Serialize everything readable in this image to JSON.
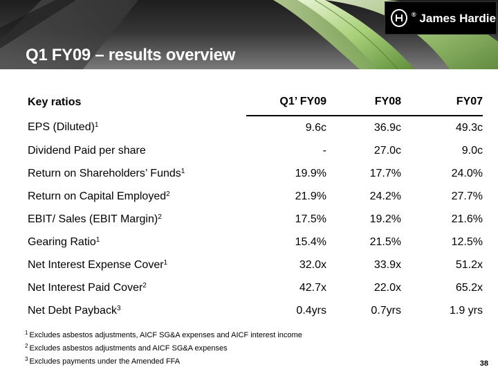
{
  "header": {
    "title": "Q1 FY09 – results overview",
    "logo": {
      "name": "James Hardie",
      "registered_mark": "®"
    }
  },
  "table": {
    "headers": [
      "Key ratios",
      "Q1’ FY09",
      "FY08",
      "FY07"
    ],
    "rows": [
      {
        "label": "EPS (Diluted)",
        "note": "1",
        "values": [
          "9.6c",
          "36.9c",
          "49.3c"
        ]
      },
      {
        "label": "Dividend Paid per share",
        "note": "",
        "values": [
          "-",
          "27.0c",
          "9.0c"
        ]
      },
      {
        "label": "Return on Shareholders’ Funds",
        "note": "1",
        "values": [
          "19.9%",
          "17.7%",
          "24.0%"
        ]
      },
      {
        "label": "Return on Capital Employed",
        "note": "2",
        "values": [
          "21.9%",
          "24.2%",
          "27.7%"
        ]
      },
      {
        "label": "EBIT/ Sales (EBIT Margin)",
        "note": "2",
        "values": [
          "17.5%",
          "19.2%",
          "21.6%"
        ]
      },
      {
        "label": "Gearing Ratio",
        "note": "1",
        "values": [
          "15.4%",
          "21.5%",
          "12.5%"
        ]
      },
      {
        "label": "Net Interest Expense Cover",
        "note": "1",
        "values": [
          "32.0x",
          "33.9x",
          "51.2x"
        ]
      },
      {
        "label": "Net Interest Paid Cover",
        "note": "2",
        "values": [
          "42.7x",
          "22.0x",
          "65.2x"
        ]
      },
      {
        "label": "Net Debt Payback",
        "note": "3",
        "values": [
          "0.4yrs",
          "0.7yrs",
          "1.9 yrs"
        ]
      }
    ]
  },
  "footnotes": [
    {
      "num": "1",
      "text": "Excludes asbestos adjustments, AICF SG&A expenses and AICF interest income"
    },
    {
      "num": "2",
      "text": "Excludes asbestos adjustments and AICF SG&A expenses"
    },
    {
      "num": "3",
      "text": "Excludes payments under the Amended FFA"
    }
  ],
  "page_number": "38",
  "colors": {
    "banner_dark": "#1e1e1e",
    "leaf_green": "#9ec86a",
    "text": "#000000"
  }
}
